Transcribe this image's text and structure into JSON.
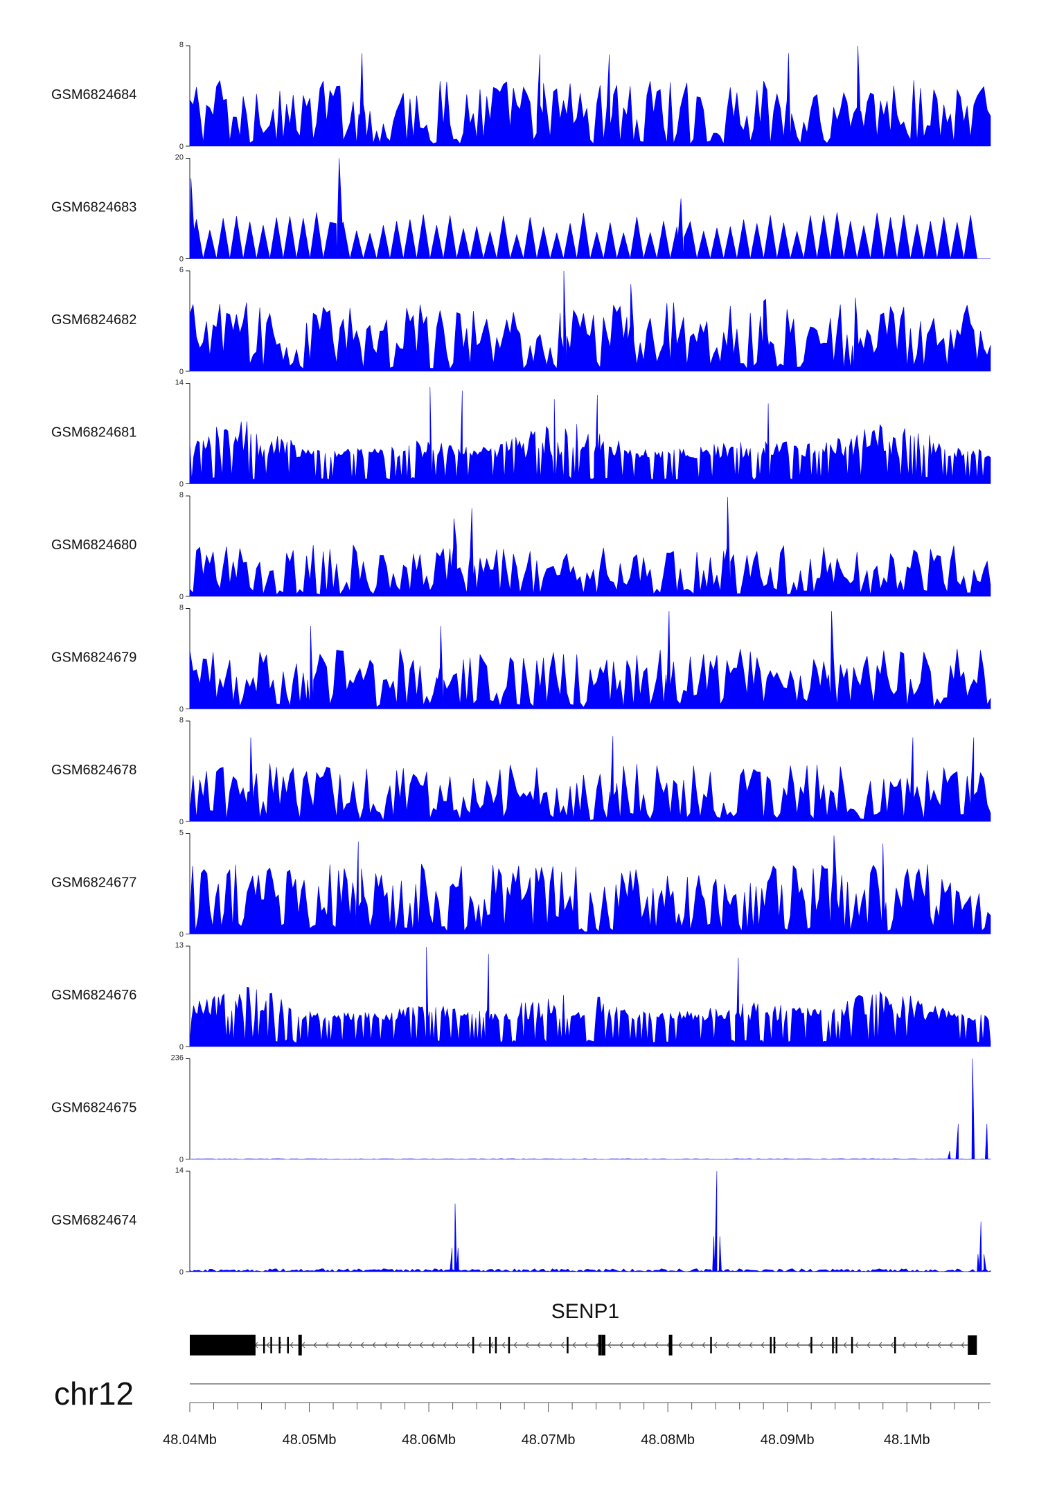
{
  "chart_data": {
    "type": "area",
    "chromosome": "chr12",
    "gene": {
      "name": "SENP1",
      "strand": "-"
    },
    "x_axis": {
      "xlim": [
        48.04,
        48.107
      ],
      "tick_values": [
        48.04,
        48.05,
        48.06,
        48.07,
        48.08,
        48.09,
        48.1
      ],
      "tick_labels": [
        "48.04Mb",
        "48.05Mb",
        "48.06Mb",
        "48.07Mb",
        "48.08Mb",
        "48.09Mb",
        "48.1Mb"
      ]
    },
    "tracks": [
      {
        "name": "GSM6824684",
        "ymin_label": "0",
        "ymax_label": "8",
        "ymax": 8,
        "peaks": [
          [
            48.0544,
            7.4
          ],
          [
            48.0693,
            7.3
          ],
          [
            48.0751,
            7.3
          ],
          [
            48.0901,
            7.4
          ],
          [
            48.0959,
            8.0
          ]
        ]
      },
      {
        "name": "GSM6824683",
        "ymin_label": "0",
        "ymax_label": "20",
        "ymax": 20,
        "peaks": [
          [
            48.0401,
            16.0
          ],
          [
            48.0525,
            20.0
          ],
          [
            48.0811,
            12.0
          ]
        ]
      },
      {
        "name": "GSM6824682",
        "ymin_label": "0",
        "ymax_label": "6",
        "ymax": 6,
        "peaks": [
          [
            48.0713,
            6.0
          ],
          [
            48.0769,
            5.2
          ],
          [
            48.0882,
            4.3
          ],
          [
            48.0957,
            4.4
          ]
        ]
      },
      {
        "name": "GSM6824681",
        "ymin_label": "0",
        "ymax_label": "14",
        "ymax": 14,
        "peaks": [
          [
            48.0601,
            13.5
          ],
          [
            48.0628,
            13.0
          ],
          [
            48.0705,
            11.8
          ],
          [
            48.0741,
            12.4
          ],
          [
            48.0884,
            11.2
          ]
        ]
      },
      {
        "name": "GSM6824680",
        "ymin_label": "0",
        "ymax_label": "8",
        "ymax": 8,
        "peaks": [
          [
            48.0621,
            6.2
          ],
          [
            48.0636,
            7.0
          ],
          [
            48.085,
            7.9
          ]
        ]
      },
      {
        "name": "GSM6824679",
        "ymin_label": "0",
        "ymax_label": "8",
        "ymax": 8,
        "peaks": [
          [
            48.0501,
            6.6
          ],
          [
            48.061,
            6.6
          ],
          [
            48.0801,
            7.8
          ],
          [
            48.0937,
            7.8
          ]
        ]
      },
      {
        "name": "GSM6824678",
        "ymin_label": "0",
        "ymax_label": "8",
        "ymax": 8,
        "peaks": [
          [
            48.0451,
            6.7
          ],
          [
            48.0754,
            6.8
          ],
          [
            48.1005,
            6.7
          ],
          [
            48.1056,
            6.7
          ]
        ]
      },
      {
        "name": "GSM6824677",
        "ymin_label": "0",
        "ymax_label": "5",
        "ymax": 5,
        "peaks": [
          [
            48.0541,
            4.6
          ],
          [
            48.0939,
            4.9
          ],
          [
            48.098,
            4.5
          ]
        ]
      },
      {
        "name": "GSM6824676",
        "ymin_label": "0",
        "ymax_label": "13",
        "ymax": 13,
        "peaks": [
          [
            48.0598,
            12.9
          ],
          [
            48.065,
            12.0
          ],
          [
            48.0859,
            11.5
          ]
        ]
      },
      {
        "name": "GSM6824675",
        "ymin_label": "0",
        "ymax_label": "236",
        "ymax": 236,
        "peaks": [
          [
            48.1055,
            236
          ]
        ]
      },
      {
        "name": "GSM6824674",
        "ymin_label": "0",
        "ymax_label": "14",
        "ymax": 14,
        "peaks": [
          [
            48.0622,
            9.5
          ],
          [
            48.0841,
            14.0
          ],
          [
            48.1062,
            7.0
          ]
        ]
      }
    ],
    "colors": {
      "signal": "#0000ff",
      "axis": "#222222",
      "gene": "#000000"
    }
  }
}
